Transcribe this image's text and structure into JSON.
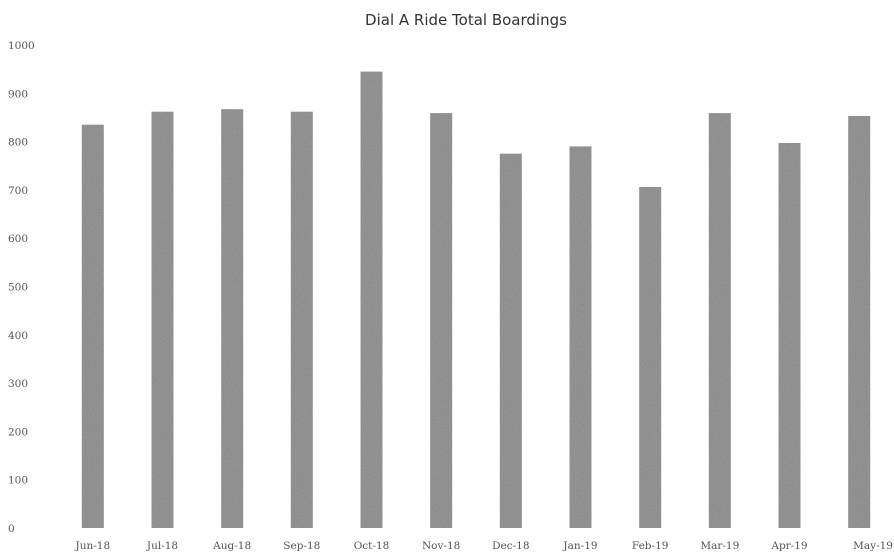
{
  "chart_data": {
    "type": "bar",
    "title": "Dial A Ride Total Boardings",
    "xlabel": "",
    "ylabel": "",
    "categories": [
      "Jun-18",
      "Jul-18",
      "Aug-18",
      "Sep-18",
      "Oct-18",
      "Nov-18",
      "Dec-18",
      "Jan-19",
      "Feb-19",
      "Mar-19",
      "Apr-19",
      "May-19"
    ],
    "values": [
      835,
      862,
      867,
      862,
      945,
      859,
      775,
      790,
      706,
      859,
      797,
      853
    ],
    "ylim": [
      0,
      1000
    ],
    "yticks": [
      0,
      100,
      200,
      300,
      400,
      500,
      600,
      700,
      800,
      900,
      1000
    ],
    "grid": false,
    "legend": "none",
    "bar_color": "#9a9a9a"
  }
}
